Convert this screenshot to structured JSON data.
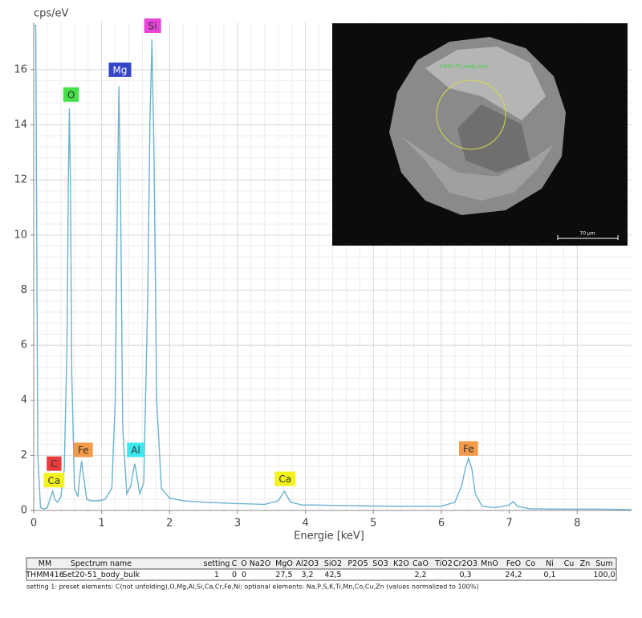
{
  "chart_data": {
    "type": "line",
    "y_label": "cps/eV",
    "x_label": "Energie [keV]",
    "color": "#6bb3cf",
    "grid": true,
    "xlim": [
      0,
      8.8
    ],
    "ylim": [
      0,
      17.6
    ],
    "xticks": [
      0,
      1,
      2,
      3,
      4,
      5,
      6,
      7,
      8
    ],
    "yticks": [
      0,
      2,
      4,
      6,
      8,
      10,
      12,
      14,
      16
    ],
    "x": [
      0,
      0.03,
      0.06,
      0.1,
      0.15,
      0.2,
      0.25,
      0.28,
      0.31,
      0.35,
      0.4,
      0.45,
      0.49,
      0.51,
      0.525,
      0.54,
      0.56,
      0.6,
      0.65,
      0.68,
      0.705,
      0.73,
      0.78,
      0.85,
      0.95,
      1.05,
      1.15,
      1.2,
      1.23,
      1.254,
      1.28,
      1.31,
      1.37,
      1.43,
      1.47,
      1.487,
      1.51,
      1.56,
      1.62,
      1.68,
      1.71,
      1.74,
      1.77,
      1.81,
      1.88,
      2.0,
      2.2,
      2.5,
      3.0,
      3.4,
      3.6,
      3.69,
      3.78,
      3.95,
      4.1,
      4.5,
      5.0,
      5.5,
      6.0,
      6.2,
      6.3,
      6.35,
      6.4,
      6.45,
      6.5,
      6.6,
      6.8,
      7.0,
      7.06,
      7.12,
      7.3,
      7.8,
      8.3,
      8.8
    ],
    "values": [
      17.6,
      17.6,
      2,
      0.1,
      0.05,
      0.1,
      0.5,
      0.7,
      0.4,
      0.3,
      0.5,
      1.5,
      6,
      12,
      14.6,
      12,
      5,
      0.8,
      0.5,
      1.3,
      1.8,
      1.3,
      0.4,
      0.35,
      0.35,
      0.4,
      0.8,
      4,
      11,
      15.4,
      11,
      3,
      0.6,
      0.9,
      1.5,
      1.7,
      1.4,
      0.6,
      1.0,
      8,
      14,
      17.1,
      13,
      4,
      0.8,
      0.45,
      0.35,
      0.3,
      0.25,
      0.22,
      0.35,
      0.7,
      0.3,
      0.2,
      0.2,
      0.18,
      0.16,
      0.15,
      0.15,
      0.3,
      0.9,
      1.5,
      1.9,
      1.5,
      0.6,
      0.15,
      0.1,
      0.2,
      0.32,
      0.15,
      0.06,
      0.05,
      0.05,
      0.03
    ],
    "annotations": [
      {
        "text": "C",
        "color": "#e83c3c",
        "x": 0.3,
        "y": 1.7
      },
      {
        "text": "Ca",
        "color": "#f4f21c",
        "x": 0.3,
        "y": 1.1
      },
      {
        "text": "O",
        "color": "#45e04a",
        "x": 0.55,
        "y": 15.1
      },
      {
        "text": "Fe",
        "color": "#f59a48",
        "x": 0.73,
        "y": 2.2
      },
      {
        "text": "Mg",
        "color": "#3347c8",
        "x": 1.27,
        "y": 16
      },
      {
        "text": "Al",
        "color": "#3de8ef",
        "x": 1.5,
        "y": 2.2
      },
      {
        "text": "Si",
        "color": "#e844d8",
        "x": 1.75,
        "y": 17.6
      },
      {
        "text": "Ca",
        "color": "#f4f21c",
        "x": 3.7,
        "y": 1.15
      },
      {
        "text": "Fe",
        "color": "#f59a48",
        "x": 6.4,
        "y": 2.25
      }
    ]
  },
  "inset": {
    "region_label": "Set20-51_body_bulk",
    "scale_label": "70 µm"
  },
  "table": {
    "headers": [
      "MM",
      "Spectrum name",
      "setting",
      "C",
      "O",
      "Na2O",
      "MgO",
      "Al2O3",
      "SiO2",
      "P2O5",
      "SO3",
      "K2O",
      "CaO",
      "TiO2",
      "Cr2O3",
      "MnO",
      "FeO",
      "Co",
      "Ni",
      "Cu",
      "Zn",
      "Sum"
    ],
    "rows": [
      [
        "THMM416",
        "Set20-51_body_bulk",
        "1",
        "0",
        "0",
        null,
        "27,5",
        "3,2",
        "42,5",
        null,
        null,
        null,
        "2,2",
        null,
        "0,3",
        null,
        "24,2",
        null,
        "0,1",
        null,
        null,
        "100,0"
      ]
    ]
  },
  "note": "setting 1: preset elements: C(not unfolding),O,Mg,Al,Si,Ca,Cr,Fe,Ni; optional elements: Na,P,S,K,Ti,Mn,Co,Cu,Zn (values normalized to 100%)"
}
